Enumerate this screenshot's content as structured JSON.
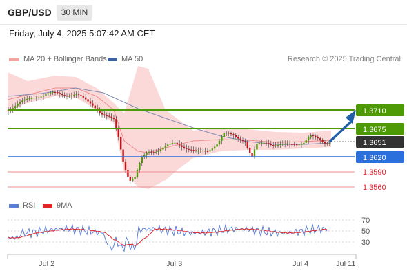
{
  "header": {
    "symbol": "GBP/USD",
    "timeframe": "30 MIN"
  },
  "timestamp": "Friday, July 4, 2025 5:07:42 AM CET",
  "legend": {
    "ma20": {
      "label": "MA 20 + Bollinger Bands",
      "color": "#f08a8a"
    },
    "ma50": {
      "label": "MA 50",
      "color": "#3f5f9f"
    }
  },
  "credit": "Research © 2025 Trading Central",
  "rsi_legend": {
    "rsi": {
      "label": "RSI",
      "color": "#5b7fd6"
    },
    "ma9": {
      "label": "9MA",
      "color": "#e0262a"
    }
  },
  "levels": [
    {
      "value": "1.3710",
      "kind": "target",
      "color": "#4d9a06"
    },
    {
      "value": "1.3675",
      "kind": "target",
      "color": "#4d9a06"
    },
    {
      "value": "1.3651",
      "kind": "current",
      "color": "#333333"
    },
    {
      "value": "1.3620",
      "kind": "pivot",
      "color": "#2a6fdc"
    },
    {
      "value": "1.3590",
      "kind": "support",
      "color": "#e0262a"
    },
    {
      "value": "1.3560",
      "kind": "support",
      "color": "#e0262a"
    }
  ],
  "rsi_ticks": [
    "70",
    "50",
    "30"
  ],
  "x_axis": [
    "Jul 2",
    "Jul 3",
    "Jul 4",
    "Jul 11"
  ]
}
